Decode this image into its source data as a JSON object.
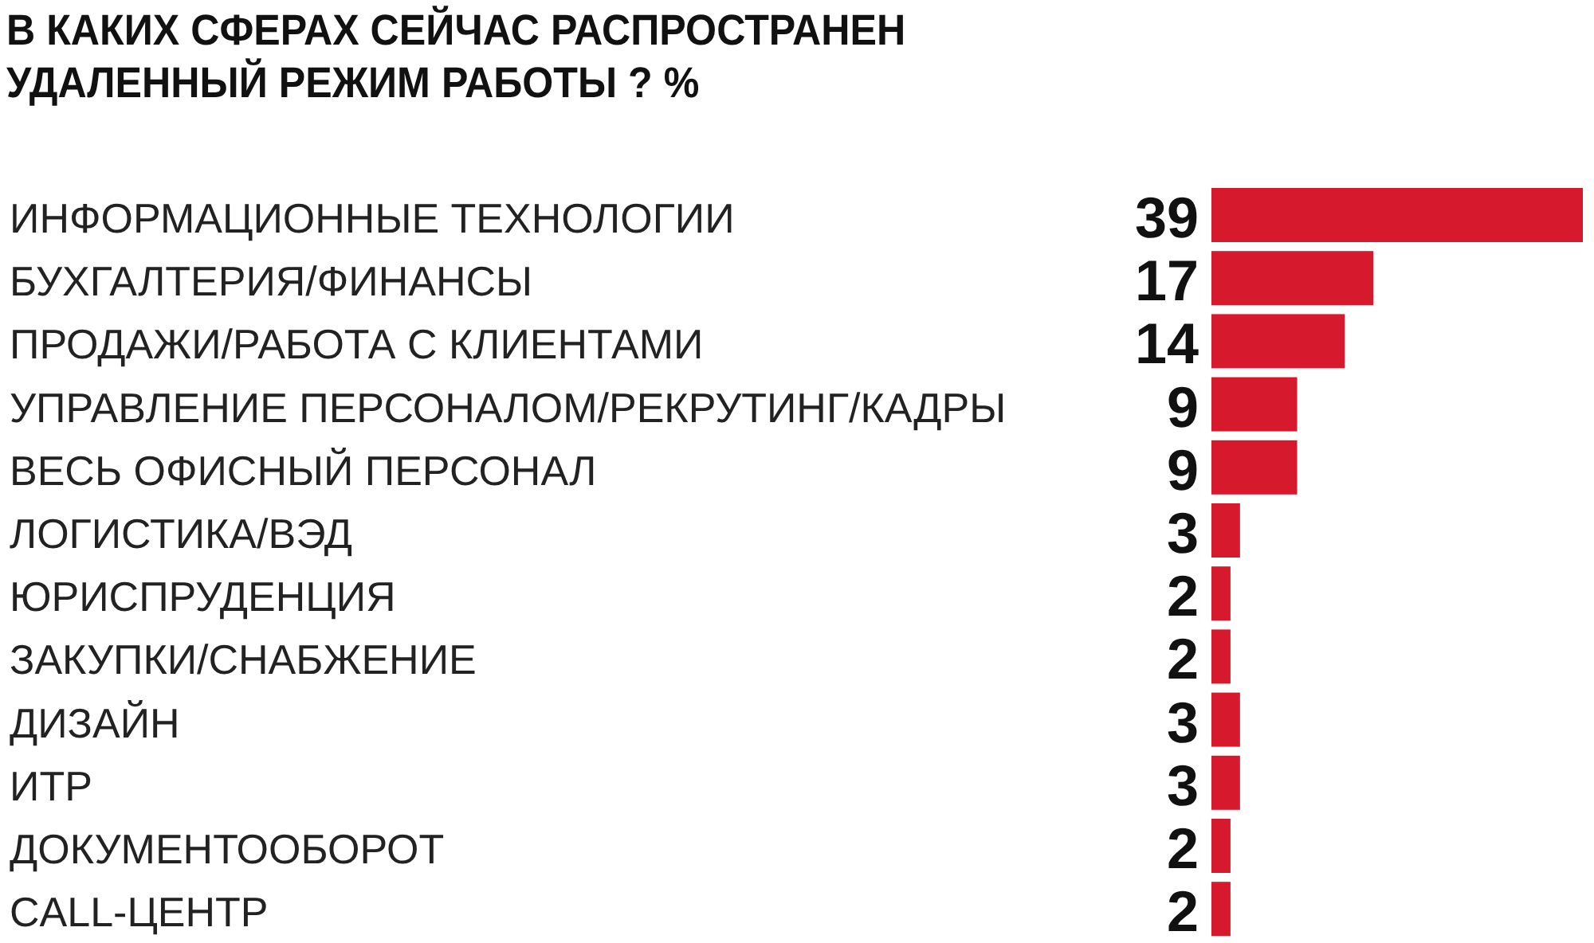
{
  "chart_data": {
    "type": "bar",
    "orientation": "horizontal",
    "title": "В КАКИХ СФЕРАХ СЕЙЧАС РАСПРОСТРАНЕН УДАЛЕННЫЙ РЕЖИМ РАБОТЫ ? %",
    "categories": [
      "ИНФОРМАЦИОННЫЕ ТЕХНОЛОГИИ",
      "БУХГАЛТЕРИЯ/ФИНАНСЫ",
      "ПРОДАЖИ/РАБОТА С КЛИЕНТАМИ",
      "УПРАВЛЕНИЕ ПЕРСОНАЛОМ/РЕКРУТИНГ/КАДРЫ",
      "ВЕСЬ ОФИСНЫЙ ПЕРСОНАЛ",
      "ЛОГИСТИКА/ВЭД",
      "ЮРИСПРУДЕНЦИЯ",
      "ЗАКУПКИ/СНАБЖЕНИЕ",
      "ДИЗАЙН",
      "ИТР",
      "ДОКУМЕНТООБОРОТ",
      "CALL-ЦЕНТР"
    ],
    "values": [
      39,
      17,
      14,
      9,
      9,
      3,
      2,
      2,
      3,
      3,
      2,
      2
    ],
    "value_labels": [
      "39",
      "17",
      "14",
      "9",
      "9",
      "3",
      "2",
      "2",
      "3",
      "3",
      "2",
      "2"
    ],
    "color": "#d7192d"
  }
}
